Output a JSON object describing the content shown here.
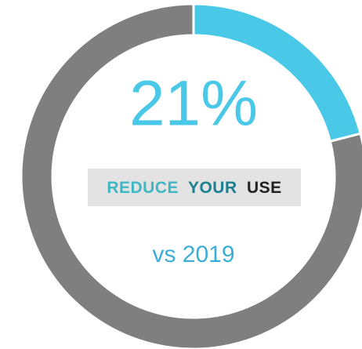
{
  "chart_data": {
    "type": "donut",
    "values": [
      21,
      79
    ],
    "value_labels": [
      "21%",
      null
    ],
    "colors": [
      "#4ac8e8",
      "#7f7f7f"
    ],
    "logo": [
      "REDUCE",
      "YOUR",
      "USE"
    ],
    "subtitle": "vs 2019"
  }
}
